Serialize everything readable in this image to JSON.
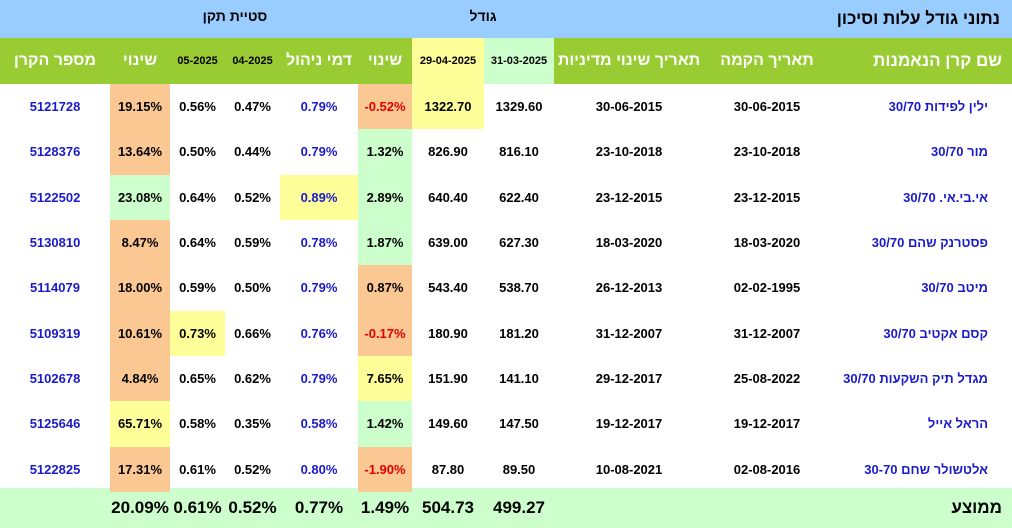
{
  "top": {
    "title": "נתוני גודל עלות וסיכון",
    "size_label": "גודל",
    "std_label": "סטיית תקן"
  },
  "headers": {
    "fund_name": "שם קרן הנאמנות",
    "inception": "תאריך הקמה",
    "policy_change": "תאריך שינוי מדיניות",
    "size_d1": "31-03-2025",
    "size_d2": "29-04-2025",
    "change": "שינוי",
    "mgmt_fee": "דמי ניהול",
    "std_m1": "04-2025",
    "std_m2": "05-2025",
    "std_change": "שינוי",
    "fund_number": "מספר הקרן"
  },
  "colors": {
    "top_bar": "#99ccff",
    "header_green": "#99cc33",
    "footer": "#ccffcc",
    "orange": "#fbc894",
    "light_green": "#ccffcc",
    "yellow": "#ffff99",
    "blue_text": "#1a1acc",
    "red_text": "#e00000"
  },
  "rows": [
    {
      "name": "ילין לפידות 30/70",
      "inception": "30-06-2015",
      "policy": "30-06-2015",
      "s1": "1329.60",
      "s2": "1322.70",
      "s2_bg": "yellow",
      "chg": "-0.52%",
      "chg_bg": "orange",
      "chg_color": "red",
      "fee": "0.79%",
      "fee_bg": "",
      "m1": "0.47%",
      "m2": "0.56%",
      "m2_bg": "",
      "schg": "19.15%",
      "schg_bg": "orange",
      "num": "5121728"
    },
    {
      "name": "מור 30/70",
      "inception": "23-10-2018",
      "policy": "23-10-2018",
      "s1": "816.10",
      "s2": "826.90",
      "s2_bg": "",
      "chg": "1.32%",
      "chg_bg": "light_green",
      "chg_color": "",
      "fee": "0.79%",
      "fee_bg": "",
      "m1": "0.44%",
      "m2": "0.50%",
      "m2_bg": "",
      "schg": "13.64%",
      "schg_bg": "orange",
      "num": "5128376"
    },
    {
      "name": "אי.בי.אי. 30/70",
      "inception": "23-12-2015",
      "policy": "23-12-2015",
      "s1": "622.40",
      "s2": "640.40",
      "s2_bg": "",
      "chg": "2.89%",
      "chg_bg": "light_green",
      "chg_color": "",
      "fee": "0.89%",
      "fee_bg": "yellow",
      "m1": "0.52%",
      "m2": "0.64%",
      "m2_bg": "",
      "schg": "23.08%",
      "schg_bg": "light_green",
      "num": "5122502"
    },
    {
      "name": "פסטרנק שהם 30/70",
      "inception": "18-03-2020",
      "policy": "18-03-2020",
      "s1": "627.30",
      "s2": "639.00",
      "s2_bg": "",
      "chg": "1.87%",
      "chg_bg": "light_green",
      "chg_color": "",
      "fee": "0.78%",
      "fee_bg": "",
      "m1": "0.59%",
      "m2": "0.64%",
      "m2_bg": "",
      "schg": "8.47%",
      "schg_bg": "orange",
      "num": "5130810"
    },
    {
      "name": "מיטב 30/70",
      "inception": "02-02-1995",
      "policy": "26-12-2013",
      "s1": "538.70",
      "s2": "543.40",
      "s2_bg": "",
      "chg": "0.87%",
      "chg_bg": "orange",
      "chg_color": "",
      "fee": "0.79%",
      "fee_bg": "",
      "m1": "0.50%",
      "m2": "0.59%",
      "m2_bg": "",
      "schg": "18.00%",
      "schg_bg": "orange",
      "num": "5114079"
    },
    {
      "name": "קסם אקטיב 30/70",
      "inception": "31-12-2007",
      "policy": "31-12-2007",
      "s1": "181.20",
      "s2": "180.90",
      "s2_bg": "",
      "chg": "-0.17%",
      "chg_bg": "orange",
      "chg_color": "red",
      "fee": "0.76%",
      "fee_bg": "",
      "m1": "0.66%",
      "m2": "0.73%",
      "m2_bg": "yellow",
      "schg": "10.61%",
      "schg_bg": "orange",
      "num": "5109319"
    },
    {
      "name": "מגדל תיק השקעות 30/70",
      "inception": "25-08-2022",
      "policy": "29-12-2017",
      "s1": "141.10",
      "s2": "151.90",
      "s2_bg": "",
      "chg": "7.65%",
      "chg_bg": "yellow",
      "chg_color": "",
      "fee": "0.79%",
      "fee_bg": "",
      "m1": "0.62%",
      "m2": "0.65%",
      "m2_bg": "",
      "schg": "4.84%",
      "schg_bg": "orange",
      "num": "5102678"
    },
    {
      "name": "הראל אייל",
      "inception": "19-12-2017",
      "policy": "19-12-2017",
      "s1": "147.50",
      "s2": "149.60",
      "s2_bg": "",
      "chg": "1.42%",
      "chg_bg": "light_green",
      "chg_color": "",
      "fee": "0.58%",
      "fee_bg": "",
      "m1": "0.35%",
      "m2": "0.58%",
      "m2_bg": "",
      "schg": "65.71%",
      "schg_bg": "yellow",
      "num": "5125646"
    },
    {
      "name": "אלטשולר שחם 30-70",
      "inception": "02-08-2016",
      "policy": "10-08-2021",
      "s1": "89.50",
      "s2": "87.80",
      "s2_bg": "",
      "chg": "-1.90%",
      "chg_bg": "orange",
      "chg_color": "red",
      "fee": "0.80%",
      "fee_bg": "",
      "m1": "0.52%",
      "m2": "0.61%",
      "m2_bg": "",
      "schg": "17.31%",
      "schg_bg": "orange",
      "num": "5122825"
    }
  ],
  "footer": {
    "label": "ממוצע",
    "s1": "499.27",
    "s2": "504.73",
    "chg": "1.49%",
    "fee": "0.77%",
    "m1": "0.52%",
    "m2": "0.61%",
    "schg": "20.09%"
  }
}
